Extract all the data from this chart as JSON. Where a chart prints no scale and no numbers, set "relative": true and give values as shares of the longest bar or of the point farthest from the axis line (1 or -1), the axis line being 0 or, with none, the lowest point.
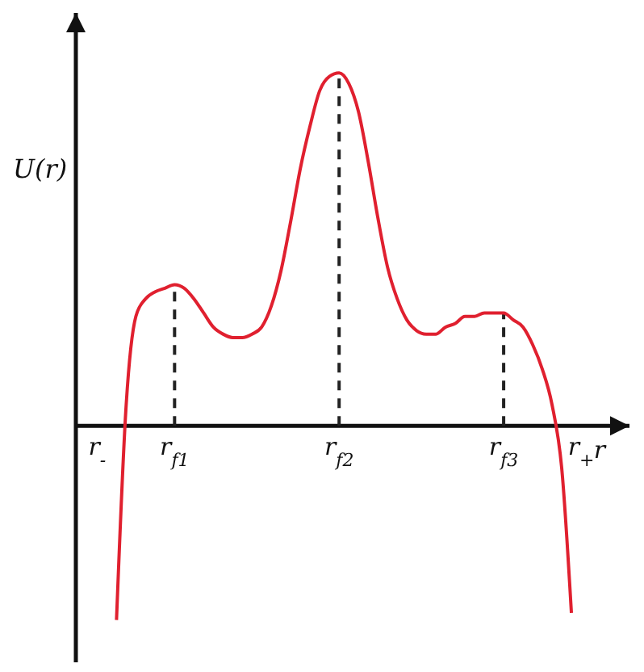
{
  "chart_data": {
    "type": "line",
    "relative": true,
    "ylabel": "U(r)",
    "xlabel": "r",
    "color": "#e0202f",
    "marker": "none",
    "line_style": "solid",
    "legend": false,
    "grid": false,
    "categories": [
      null,
      "r$_{-}$",
      null,
      null,
      null,
      null,
      null,
      null,
      null,
      "r$_{f1}$",
      null,
      null,
      null,
      null,
      null,
      null,
      null,
      null,
      null,
      null,
      null,
      null,
      null,
      null,
      null,
      null,
      "r$_{f2}$",
      null,
      null,
      null,
      null,
      null,
      null,
      null,
      null,
      null,
      null,
      null,
      null,
      null,
      null,
      null,
      null,
      "r$_{f3}$",
      null,
      null,
      null,
      null,
      null,
      null,
      null,
      "r$_{+}$"
    ],
    "values": [
      null,
      null,
      null,
      -0.55,
      0.06,
      0.31,
      0.36,
      0.38,
      0.39,
      0.4,
      0.39,
      0.36,
      0.32,
      0.28,
      0.26,
      0.25,
      0.25,
      0.26,
      0.28,
      0.34,
      0.44,
      0.58,
      0.73,
      0.85,
      0.95,
      0.99,
      1,
      0.97,
      0.89,
      0.75,
      0.59,
      0.45,
      0.36,
      0.3,
      0.27,
      0.26,
      0.26,
      0.28,
      0.29,
      0.31,
      0.31,
      0.32,
      0.32,
      0.32,
      0.3,
      0.28,
      0.23,
      0.16,
      0.06,
      -0.12,
      -0.53,
      null
    ],
    "ref_lines": [
      {
        "axis": "x",
        "value": "r$_{f1}$",
        "line_style": "dashed",
        "color": "#222222"
      },
      {
        "axis": "x",
        "value": "r$_{f2}$",
        "line_style": "dashed",
        "color": "#222222"
      },
      {
        "axis": "x",
        "value": "r$_{f3}$",
        "line_style": "dashed",
        "color": "#222222"
      }
    ]
  }
}
